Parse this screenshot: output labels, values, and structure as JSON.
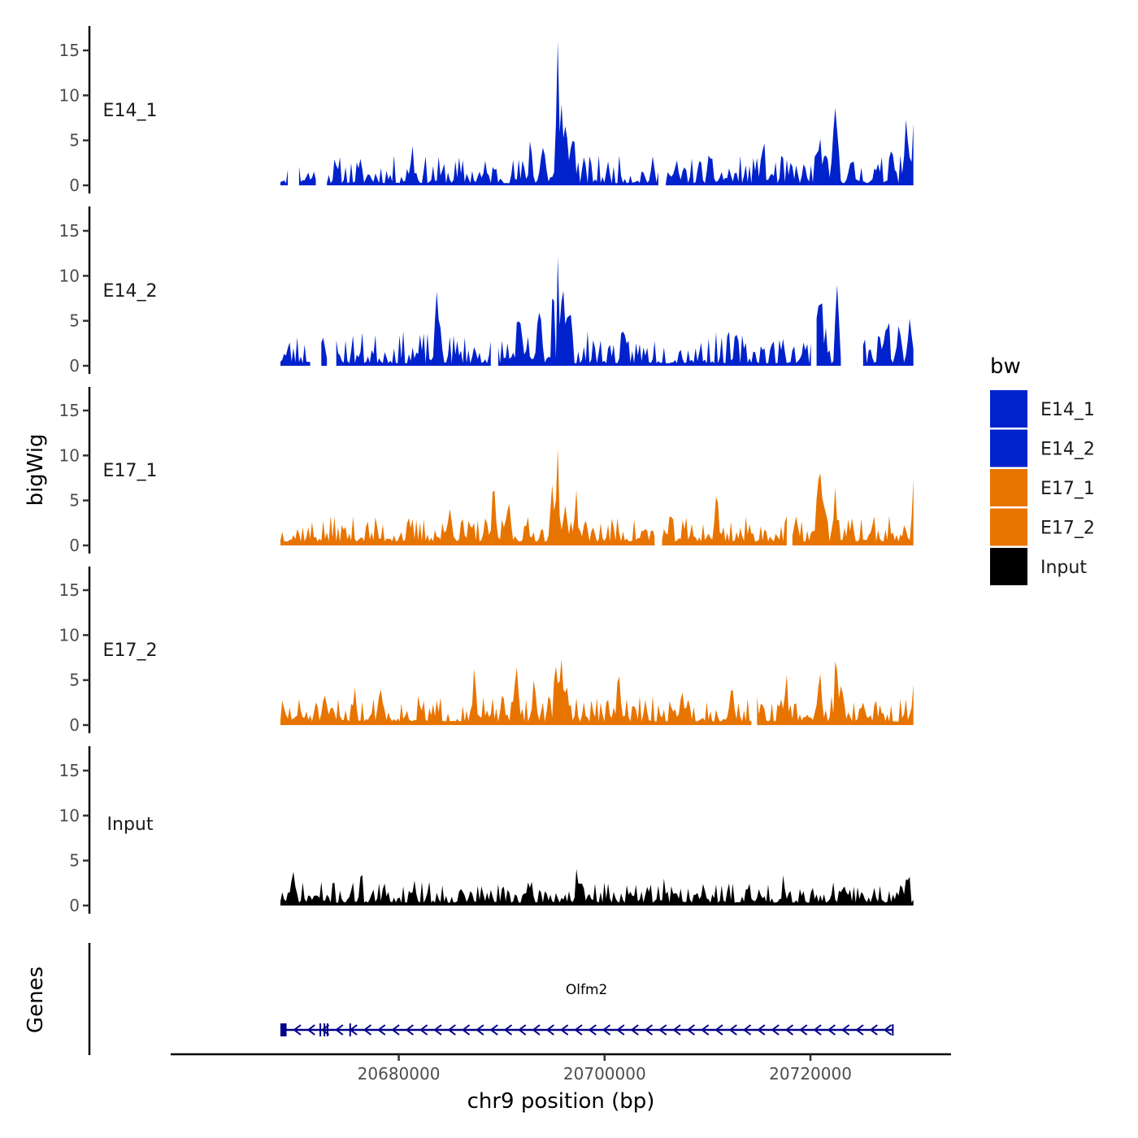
{
  "chart_data": {
    "type": "area",
    "chromosome": "chr9",
    "xlabel": "chr9 position (bp)",
    "ylabel": "bigWig",
    "genes_label": "Genes",
    "xlim": [
      20658000,
      20733500
    ],
    "x_data_start": 20668500,
    "x_data_end": 20730000,
    "x_ticks": [
      20680000,
      20700000,
      20720000
    ],
    "x_tick_labels": [
      "20680000",
      "20700000",
      "20720000"
    ],
    "ylim": [
      0,
      18
    ],
    "y_ticks": [
      0,
      5,
      10,
      15
    ],
    "y_tick_labels": [
      "0",
      "5",
      "10",
      "15"
    ],
    "colors": {
      "E14": "#0022CC",
      "E17": "#E87400",
      "Input": "#000000",
      "gene": "#00008B"
    },
    "series": [
      {
        "name": "E14_1",
        "color": "#0022CC",
        "baseline": 0.6,
        "noise": 1.3,
        "seed": 11,
        "gaps": [
          [
            20669300,
            20670300
          ],
          [
            20672100,
            20672900
          ],
          [
            20705300,
            20705800
          ]
        ],
        "peaks": [
          [
            20694000,
            3.5,
            250
          ],
          [
            20695400,
            16.8,
            120
          ],
          [
            20695800,
            7.0,
            200
          ],
          [
            20696200,
            6.2,
            200
          ],
          [
            20696900,
            4.5,
            300
          ],
          [
            20681300,
            3.5,
            200
          ],
          [
            20692800,
            3.8,
            200
          ],
          [
            20715300,
            3.2,
            250
          ],
          [
            20720900,
            3.8,
            300
          ],
          [
            20722300,
            5.2,
            200
          ],
          [
            20722600,
            5.0,
            200
          ],
          [
            20729300,
            5.0,
            250
          ],
          [
            20730000,
            5.2,
            200
          ],
          [
            20727900,
            3.8,
            250
          ]
        ]
      },
      {
        "name": "E14_2",
        "color": "#0022CC",
        "baseline": 0.7,
        "noise": 1.5,
        "seed": 23,
        "gaps": [
          [
            20671400,
            20672300
          ],
          [
            20673100,
            20673800
          ],
          [
            20689000,
            20689500
          ],
          [
            20720200,
            20720500
          ],
          [
            20723000,
            20725000
          ]
        ],
        "peaks": [
          [
            20683800,
            5.0,
            300
          ],
          [
            20695000,
            9.5,
            150
          ],
          [
            20695500,
            12.5,
            110
          ],
          [
            20695900,
            8.0,
            200
          ],
          [
            20696500,
            5.2,
            250
          ],
          [
            20693700,
            3.8,
            250
          ],
          [
            20691600,
            2.8,
            250
          ],
          [
            20720700,
            5.5,
            300
          ],
          [
            20721100,
            4.5,
            250
          ],
          [
            20722600,
            7.2,
            200
          ],
          [
            20727400,
            4.2,
            250
          ],
          [
            20728600,
            4.2,
            250
          ],
          [
            20729700,
            4.0,
            250
          ]
        ]
      },
      {
        "name": "E17_1",
        "color": "#E87400",
        "baseline": 1.1,
        "noise": 1.2,
        "seed": 37,
        "gaps": [
          [
            20705000,
            20705400
          ],
          [
            20717800,
            20718100
          ]
        ],
        "peaks": [
          [
            20695400,
            8.7,
            150
          ],
          [
            20694900,
            4.0,
            250
          ],
          [
            20696200,
            3.5,
            250
          ],
          [
            20697200,
            3.0,
            300
          ],
          [
            20720800,
            6.5,
            200
          ],
          [
            20721200,
            4.8,
            250
          ],
          [
            20722400,
            4.0,
            250
          ],
          [
            20690600,
            3.5,
            250
          ],
          [
            20689200,
            3.3,
            250
          ],
          [
            20710900,
            3.3,
            250
          ],
          [
            20730000,
            4.2,
            200
          ],
          [
            20685000,
            3.0,
            250
          ]
        ]
      },
      {
        "name": "E17_2",
        "color": "#E87400",
        "baseline": 1.0,
        "noise": 1.2,
        "seed": 51,
        "gaps": [
          [
            20714400,
            20714700
          ]
        ],
        "peaks": [
          [
            20695300,
            6.2,
            200
          ],
          [
            20695800,
            4.5,
            250
          ],
          [
            20696300,
            3.5,
            250
          ],
          [
            20691500,
            4.0,
            250
          ],
          [
            20693200,
            3.0,
            250
          ],
          [
            20701400,
            3.5,
            250
          ],
          [
            20720900,
            5.5,
            200
          ],
          [
            20722500,
            5.5,
            200
          ],
          [
            20723000,
            4.0,
            250
          ],
          [
            20730000,
            3.5,
            200
          ],
          [
            20675700,
            3.0,
            200
          ],
          [
            20678200,
            3.2,
            250
          ],
          [
            20687300,
            3.0,
            250
          ],
          [
            20707500,
            3.0,
            250
          ],
          [
            20712300,
            3.0,
            250
          ],
          [
            20717600,
            3.2,
            250
          ]
        ]
      },
      {
        "name": "Input",
        "color": "#000000",
        "baseline": 0.8,
        "noise": 1.0,
        "seed": 71,
        "gaps": [],
        "peaks": [
          [
            20669800,
            2.5,
            150
          ],
          [
            20676300,
            2.7,
            150
          ],
          [
            20681500,
            2.3,
            150
          ],
          [
            20717400,
            2.7,
            150
          ],
          [
            20729500,
            2.7,
            150
          ],
          [
            20705800,
            2.2,
            150
          ],
          [
            20697300,
            2.0,
            150
          ]
        ]
      }
    ],
    "gene": {
      "name": "Olfm2",
      "strand": "-",
      "start": 20668500,
      "end": 20728000,
      "exons": [
        [
          20668500,
          20669100
        ],
        [
          20672300,
          20672400
        ],
        [
          20672700,
          20672800
        ],
        [
          20673000,
          20673100
        ],
        [
          20675200,
          20675300
        ]
      ]
    }
  },
  "legend": {
    "title": "bw",
    "items": [
      {
        "label": "E14_1",
        "color": "#0022CC"
      },
      {
        "label": "E14_2",
        "color": "#0022CC"
      },
      {
        "label": "E17_1",
        "color": "#E87400"
      },
      {
        "label": "E17_2",
        "color": "#E87400"
      },
      {
        "label": "Input",
        "color": "#000000"
      }
    ]
  }
}
